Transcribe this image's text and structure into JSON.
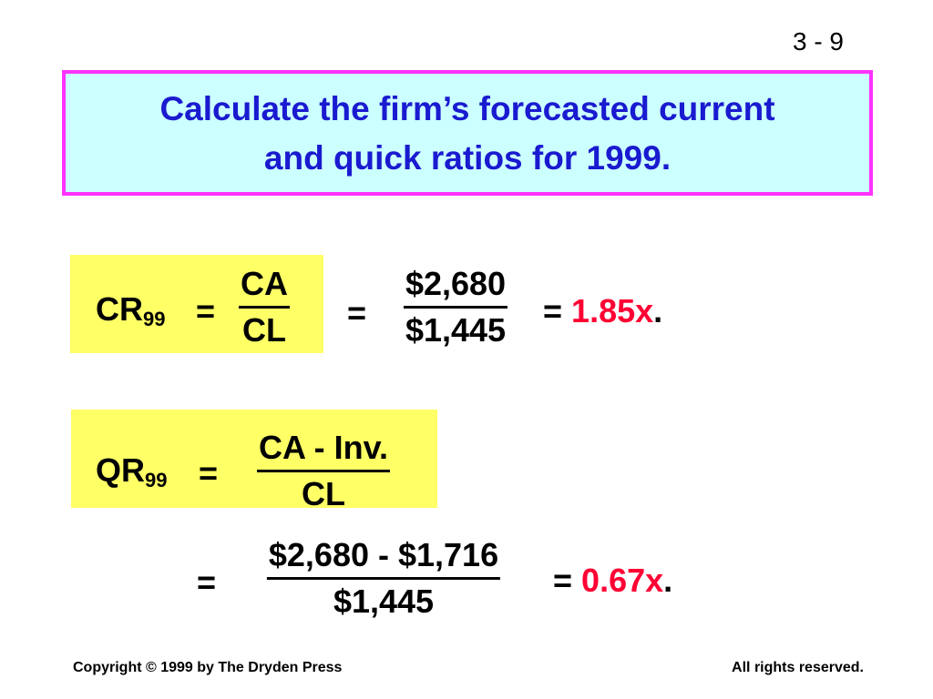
{
  "slide_number": "3 - 9",
  "title": [
    "Calculate the firm’s forecasted current",
    "and quick ratios for 1999."
  ],
  "current_ratio": {
    "label": "CR",
    "subscript": "99",
    "equals": "=",
    "numerator": "CA",
    "denominator": "CL",
    "value_numerator": "$2,680",
    "value_denominator": "$1,445",
    "result": "1.85x",
    "result_suffix": "."
  },
  "quick_ratio": {
    "label": "QR",
    "subscript": "99",
    "equals": "=",
    "numerator": "CA - Inv.",
    "denominator": "CL",
    "value_numerator": "$2,680 - $1,716",
    "value_denominator": "$1,445",
    "result": "0.67x",
    "result_suffix": "."
  },
  "footer": {
    "left": "Copyright © 1999 by The Dryden Press",
    "right": "All rights reserved."
  }
}
